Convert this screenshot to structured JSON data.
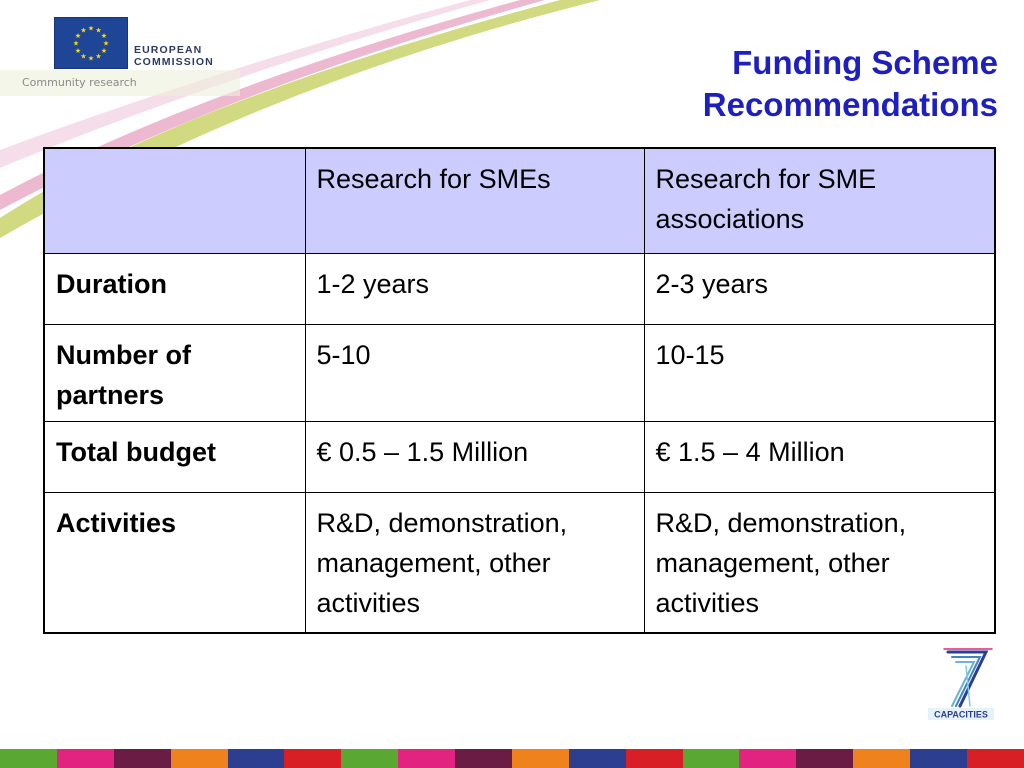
{
  "header": {
    "org_name": "EUROPEAN\nCOMMISSION",
    "org_line1": "EUROPEAN",
    "org_line2": "COMMISSION",
    "subtitle": "Community research",
    "flag_color": "#1f4596"
  },
  "slide": {
    "title_line1": "Funding Scheme",
    "title_line2": "Recommendations",
    "title_color": "#1d1fbf"
  },
  "table": {
    "header_bg": "#ccccff",
    "columns": [
      "",
      "Research for SMEs",
      "Research for SME associations"
    ],
    "rows": [
      {
        "label": "Duration",
        "smes": "1-2 years",
        "associations": "2-3 years"
      },
      {
        "label": "Number of partners",
        "smes": "5-10",
        "associations": "10-15"
      },
      {
        "label": "Total budget",
        "smes": "€ 0.5 – 1.5 Million",
        "associations": "€ 1.5 – 4 Million"
      },
      {
        "label": "Activities",
        "smes": "R&D, demonstration, management, other activities",
        "associations": "R&D, demonstration, management, other activities"
      }
    ]
  },
  "footer": {
    "programme_logo_text": "CAPACITIES",
    "programme_logo_icon": "fp7-seven-icon",
    "stripe_colors": [
      "#5aa832",
      "#e2237f",
      "#6b1c44",
      "#f0821e",
      "#2c3e8f",
      "#d91f26",
      "#5aa832",
      "#e2237f",
      "#6b1c44",
      "#f0821e",
      "#2c3e8f",
      "#d91f26",
      "#5aa832",
      "#e2237f",
      "#6b1c44",
      "#f0821e",
      "#2c3e8f",
      "#d91f26"
    ]
  }
}
